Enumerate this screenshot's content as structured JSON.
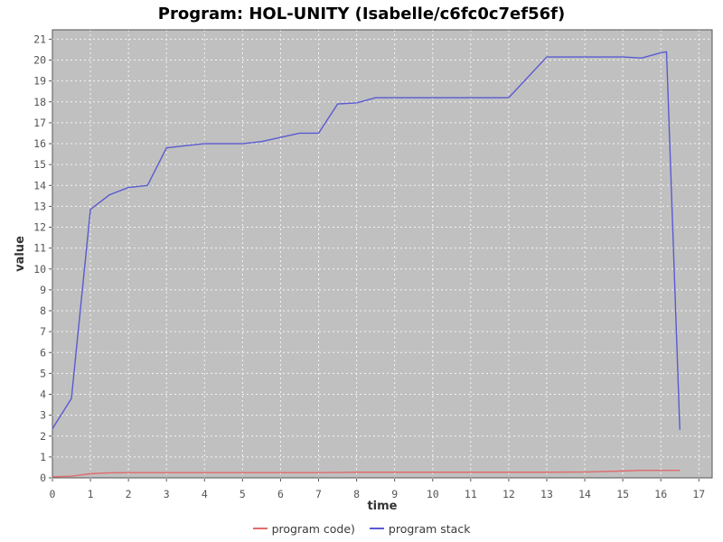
{
  "chart_data": {
    "type": "line",
    "title": "Program: HOL-UNITY (Isabelle/c6fc0c7ef56f)",
    "xlabel": "time",
    "ylabel": "value",
    "xlim": [
      0,
      17.35
    ],
    "ylim": [
      0,
      21.45
    ],
    "xticks": [
      0,
      1,
      2,
      3,
      4,
      5,
      6,
      7,
      8,
      9,
      10,
      11,
      12,
      13,
      14,
      15,
      16,
      17
    ],
    "yticks": [
      0,
      1,
      2,
      3,
      4,
      5,
      6,
      7,
      8,
      9,
      10,
      11,
      12,
      13,
      14,
      15,
      16,
      17,
      18,
      19,
      20,
      21
    ],
    "grid": true,
    "legend_position": "bottom-center",
    "colors": {
      "plot_bg": "#c0c0c0",
      "grid": "#ffffff",
      "border": "#555555",
      "tick_text": "#555555",
      "axis_label": "#333333",
      "title": "#000000",
      "legend_text": "#3a3a3a"
    },
    "series": [
      {
        "name": "program code)",
        "color": "#e06c6c",
        "points": [
          [
            0,
            0.05
          ],
          [
            0.5,
            0.08
          ],
          [
            1,
            0.2
          ],
          [
            1.5,
            0.24
          ],
          [
            2,
            0.25
          ],
          [
            3,
            0.25
          ],
          [
            4,
            0.25
          ],
          [
            5,
            0.25
          ],
          [
            6,
            0.25
          ],
          [
            7,
            0.25
          ],
          [
            8,
            0.27
          ],
          [
            9,
            0.27
          ],
          [
            10,
            0.27
          ],
          [
            11,
            0.27
          ],
          [
            12,
            0.27
          ],
          [
            13,
            0.27
          ],
          [
            14,
            0.28
          ],
          [
            15,
            0.33
          ],
          [
            15.5,
            0.36
          ],
          [
            16,
            0.36
          ],
          [
            16.5,
            0.36
          ]
        ]
      },
      {
        "name": "program stack",
        "color": "#5a5ad2",
        "points": [
          [
            0,
            2.35
          ],
          [
            0.5,
            3.8
          ],
          [
            1,
            12.85
          ],
          [
            1.5,
            13.55
          ],
          [
            2,
            13.9
          ],
          [
            2.5,
            14.0
          ],
          [
            3,
            15.8
          ],
          [
            3.5,
            15.9
          ],
          [
            4,
            16.0
          ],
          [
            4.5,
            16.0
          ],
          [
            5,
            16.0
          ],
          [
            5.5,
            16.1
          ],
          [
            6,
            16.3
          ],
          [
            6.5,
            16.5
          ],
          [
            7,
            16.5
          ],
          [
            7.5,
            17.9
          ],
          [
            8,
            17.95
          ],
          [
            8.5,
            18.2
          ],
          [
            9,
            18.2
          ],
          [
            10,
            18.2
          ],
          [
            11,
            18.2
          ],
          [
            12,
            18.2
          ],
          [
            13,
            20.15
          ],
          [
            14,
            20.15
          ],
          [
            15,
            20.15
          ],
          [
            15.5,
            20.1
          ],
          [
            16,
            20.35
          ],
          [
            16.15,
            20.4
          ],
          [
            16.5,
            2.3
          ]
        ]
      }
    ]
  }
}
